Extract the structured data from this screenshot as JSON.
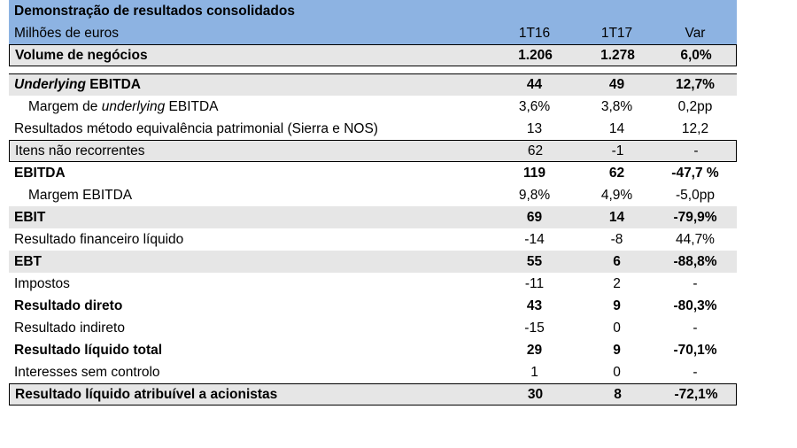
{
  "header": {
    "title": "Demonstração de resultados consolidados",
    "unit": "Milhões de euros",
    "col1": "1T16",
    "col2": "1T17",
    "col3": "Var"
  },
  "rows": [
    {
      "label": "Volume de negócios",
      "v1": "1.206",
      "v2": "1.278",
      "v3": "6,0%"
    },
    {
      "label_pre": "",
      "label_em": "Underlying",
      "label_post": " EBITDA",
      "v1": "44",
      "v2": "49",
      "v3": "12,7%"
    },
    {
      "label_pre": "Margem de ",
      "label_em": "underlying",
      "label_post": " EBITDA",
      "v1": "3,6%",
      "v2": "3,8%",
      "v3": "0,2pp"
    },
    {
      "label": "Resultados método equivalência patrimonial (Sierra e NOS)",
      "v1": "13",
      "v2": "14",
      "v3": "12,2"
    },
    {
      "label": "Itens não recorrentes",
      "v1": "62",
      "v2": "-1",
      "v3": "-"
    },
    {
      "label": "EBITDA",
      "v1": "119",
      "v2": "62",
      "v3": "-47,7 %"
    },
    {
      "label": "Margem EBITDA",
      "v1": "9,8%",
      "v2": "4,9%",
      "v3": "-5,0pp"
    },
    {
      "label": "EBIT",
      "v1": "69",
      "v2": "14",
      "v3": "-79,9%"
    },
    {
      "label": "Resultado financeiro líquido",
      "v1": "-14",
      "v2": "-8",
      "v3": "44,7%"
    },
    {
      "label": "EBT",
      "v1": "55",
      "v2": "6",
      "v3": "-88,8%"
    },
    {
      "label": "Impostos",
      "v1": "-11",
      "v2": "2",
      "v3": "-"
    },
    {
      "label": "Resultado direto",
      "v1": "43",
      "v2": "9",
      "v3": "-80,3%"
    },
    {
      "label": "Resultado indireto",
      "v1": "-15",
      "v2": "0",
      "v3": "-"
    },
    {
      "label": "Resultado líquido total",
      "v1": "29",
      "v2": "9",
      "v3": "-70,1%"
    },
    {
      "label": "Interesses sem controlo",
      "v1": "1",
      "v2": "0",
      "v3": "-"
    },
    {
      "label": "Resultado líquido atribuível a acionistas",
      "v1": "30",
      "v2": "8",
      "v3": "-72,1%"
    }
  ]
}
